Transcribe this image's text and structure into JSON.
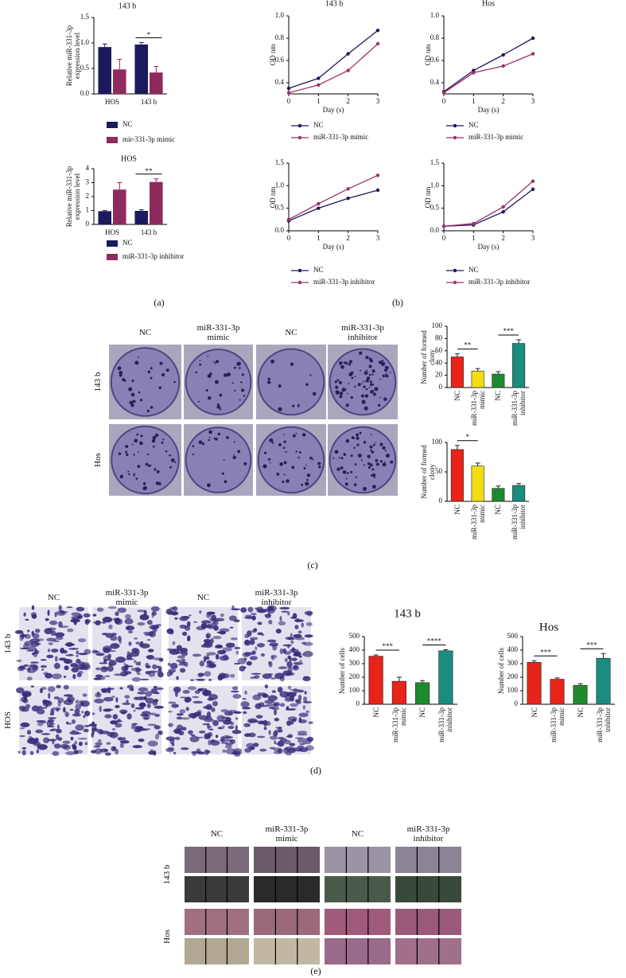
{
  "chart_data": [
    {
      "type": "bar",
      "title": "143 b",
      "y_label": "Relative miR-331-3p expression level",
      "categories": [
        "HOS",
        "143 b"
      ],
      "series": [
        {
          "name": "NC",
          "color": "#1c1a5c",
          "values": [
            0.92,
            0.97
          ],
          "errors": [
            0.06,
            0.04
          ]
        },
        {
          "name": "mir-331-3p mimic",
          "color": "#8e2a5c",
          "values": [
            0.48,
            0.42
          ],
          "errors": [
            0.2,
            0.12
          ]
        }
      ],
      "ylim": [
        0,
        1.5
      ],
      "yticks": [
        {
          "value": 0,
          "label": "0.0"
        },
        0.5,
        {
          "value": 1,
          "label": "1.0"
        },
        1.5
      ],
      "annotations": [
        "*"
      ]
    },
    {
      "type": "bar",
      "title": "HOS",
      "y_label": "Relative miR-331-3p expression level",
      "categories": [
        "HOS",
        "143 b"
      ],
      "series": [
        {
          "name": "NC",
          "color": "#1c1a5c",
          "values": [
            0.95,
            0.97
          ],
          "errors": [
            0.04,
            0.08
          ]
        },
        {
          "name": "miR-331-3p inhibitor",
          "color": "#8e2a5c",
          "values": [
            2.5,
            3.05
          ],
          "errors": [
            0.5,
            0.22
          ]
        }
      ],
      "ylim": [
        0,
        4
      ],
      "yticks": [
        0,
        1,
        2,
        3,
        4
      ],
      "annotations": [
        "**"
      ]
    },
    {
      "type": "line",
      "title": "143 b",
      "x_label": "Day (s)",
      "y_label": "OD nm",
      "x": [
        0,
        1,
        2,
        3
      ],
      "xlim": [
        0,
        3
      ],
      "xticks": [
        0,
        1,
        2,
        3
      ],
      "ylim": [
        0.3,
        1
      ],
      "yticks": [
        0.4,
        0.6,
        0.8,
        {
          "value": 1,
          "label": "1.0"
        }
      ],
      "series": [
        {
          "name": "NC",
          "color": "#1c1a5c",
          "values": [
            0.35,
            0.44,
            0.66,
            0.87
          ]
        },
        {
          "name": "miR-331-3p mimic",
          "color": "#a0306a",
          "values": [
            0.31,
            0.38,
            0.51,
            0.75
          ]
        }
      ]
    },
    {
      "type": "line",
      "title": "Hos",
      "x_label": "Day (s)",
      "y_label": "OD nm",
      "x": [
        0,
        1,
        2,
        3
      ],
      "xlim": [
        0,
        3
      ],
      "xticks": [
        0,
        1,
        2,
        3
      ],
      "ylim": [
        0.3,
        1
      ],
      "yticks": [
        0.4,
        0.6,
        0.8,
        {
          "value": 1,
          "label": "1.0"
        }
      ],
      "series": [
        {
          "name": "NC",
          "color": "#1c1a5c",
          "values": [
            0.32,
            0.51,
            0.65,
            0.8
          ]
        },
        {
          "name": "miR-331-3p mimic",
          "color": "#a0306a",
          "values": [
            0.31,
            0.49,
            0.55,
            0.66
          ]
        }
      ]
    },
    {
      "type": "line",
      "x_label": "Day (s)",
      "y_label": "OD nm",
      "x": [
        0,
        1,
        2,
        3
      ],
      "xlim": [
        0,
        3
      ],
      "xticks": [
        0,
        1,
        2,
        3
      ],
      "ylim": [
        0,
        1.5
      ],
      "yticks": [
        {
          "value": 0,
          "label": "0.0"
        },
        0.5,
        {
          "value": 1,
          "label": "1.0"
        },
        1.5
      ],
      "series": [
        {
          "name": "NC",
          "color": "#1c1a5c",
          "values": [
            0.22,
            0.5,
            0.72,
            0.9
          ]
        },
        {
          "name": "miR-331-3p inhibitor",
          "color": "#a0306a",
          "values": [
            0.25,
            0.6,
            0.93,
            1.23
          ]
        }
      ]
    },
    {
      "type": "line",
      "x_label": "Day (s)",
      "y_label": "OD nm",
      "x": [
        0,
        1,
        2,
        3
      ],
      "xlim": [
        0,
        3
      ],
      "xticks": [
        0,
        1,
        2,
        3
      ],
      "ylim": [
        0,
        1.5
      ],
      "yticks": [
        {
          "value": 0,
          "label": "0.0"
        },
        0.5,
        {
          "value": 1,
          "label": "1.0"
        },
        1.5
      ],
      "series": [
        {
          "name": "NC",
          "color": "#1c1a5c",
          "values": [
            0.1,
            0.13,
            0.42,
            0.92
          ]
        },
        {
          "name": "miR-331-3p inhibitor",
          "color": "#a0306a",
          "values": [
            0.1,
            0.16,
            0.53,
            1.1
          ]
        }
      ]
    },
    {
      "type": "bar",
      "y_label": "Number of formed clony",
      "categories": [
        "NC",
        "miR-331-3p mimic",
        "NC",
        "miR-331-3p inhibitor"
      ],
      "values": [
        50,
        27,
        22,
        72
      ],
      "errors": [
        5,
        4,
        4,
        6
      ],
      "colors": [
        "#e8231a",
        "#f2dc12",
        "#1d8a2e",
        "#1a8c80"
      ],
      "ylim": [
        0,
        100
      ],
      "yticks": [
        0,
        20,
        40,
        60,
        80,
        100
      ],
      "annotations": [
        "**",
        "***"
      ]
    },
    {
      "type": "bar",
      "y_label": "Number of formed clony",
      "categories": [
        "NC",
        "miR-331-3p mimic",
        "NC",
        "miR-331-3p inhibitor"
      ],
      "values": [
        88,
        60,
        22,
        27
      ],
      "errors": [
        7,
        5,
        4,
        3
      ],
      "colors": [
        "#e8231a",
        "#f2dc12",
        "#1d8a2e",
        "#1a8c80"
      ],
      "ylim": [
        0,
        100
      ],
      "yticks": [
        0,
        50,
        100
      ],
      "annotations": [
        "*"
      ]
    },
    {
      "type": "bar",
      "title": "143 b",
      "y_label": "Number of cells",
      "categories": [
        "NC",
        "miR-331-3p mimic",
        "NC",
        "miR-331-3p inhibitor"
      ],
      "values": [
        355,
        170,
        160,
        395
      ],
      "errors": [
        10,
        30,
        15,
        8
      ],
      "colors": [
        "#e8231a",
        "#e8231a",
        "#1d8a2e",
        "#1a8c80"
      ],
      "ylim": [
        0,
        500
      ],
      "yticks": [
        0,
        100,
        200,
        300,
        400,
        500
      ],
      "annotations": [
        "***",
        "****"
      ]
    },
    {
      "type": "bar",
      "title": "Hos",
      "y_label": "Number of cells",
      "categories": [
        "NC",
        "miR-331-3p mimic",
        "NC",
        "miR-331-3p inhibitor"
      ],
      "values": [
        310,
        185,
        140,
        340
      ],
      "errors": [
        12,
        10,
        12,
        35
      ],
      "colors": [
        "#e8231a",
        "#e8231a",
        "#1d8a2e",
        "#1a8c80"
      ],
      "ylim": [
        0,
        500
      ],
      "yticks": [
        0,
        100,
        200,
        300,
        400,
        500
      ],
      "annotations": [
        "***",
        "***"
      ]
    }
  ],
  "figure": {
    "panel_labels": [
      "(a)",
      "(b)",
      "(c)",
      "(d)",
      "(e)"
    ],
    "photo_panels": [
      {
        "columns": [
          "NC",
          "miR-331-3p mimic",
          "NC",
          "miR-331-3p inhibitor"
        ],
        "rows": [
          "143 b",
          "Hos"
        ]
      },
      {
        "columns": [
          "NC",
          "miR-331-3p mimic",
          "NC",
          "miR-331-3p inhibitor"
        ],
        "rows": [
          "143 b",
          "HOS"
        ]
      },
      {
        "columns": [
          "NC",
          "miR-331-3p mimic",
          "NC",
          "miR-331-3p inhibitor"
        ],
        "rows": [
          "143 b",
          "Hos"
        ]
      }
    ]
  }
}
